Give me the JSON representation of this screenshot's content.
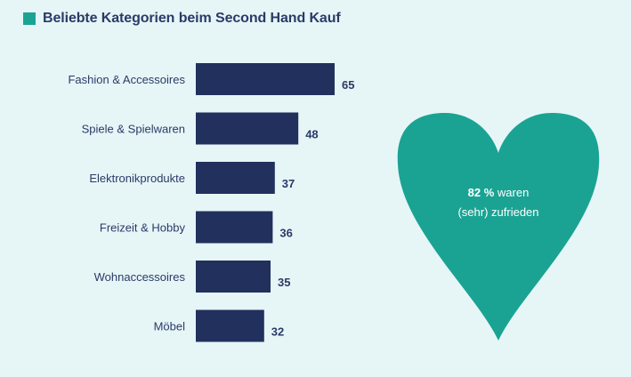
{
  "title": "Beliebte Kategorien beim Second Hand Kauf",
  "colors": {
    "accent": "#1aa393",
    "bar": "#22305e",
    "text": "#2b3a67",
    "background": "#e6f6f7"
  },
  "chart_data": {
    "type": "bar",
    "orientation": "horizontal",
    "categories": [
      "Fashion & Accessoires",
      "Spiele & Spielwaren",
      "Elektronikprodukte",
      "Freizeit & Hobby",
      "Wohnaccessoires",
      "Möbel"
    ],
    "values": [
      65,
      48,
      37,
      36,
      35,
      32
    ],
    "xlim": [
      0,
      65
    ],
    "grid": false,
    "data_labels": true
  },
  "heart": {
    "value": "82 %",
    "line1_rest": "waren",
    "line2": "(sehr) zufrieden"
  }
}
